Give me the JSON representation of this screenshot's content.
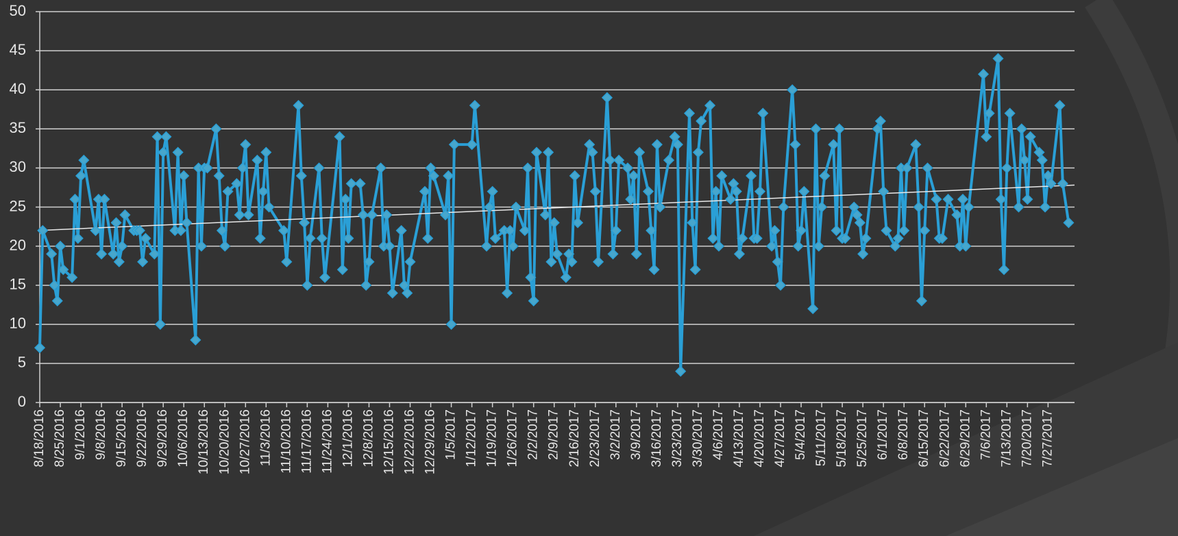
{
  "chart_data": {
    "type": "line",
    "x": [
      "8/18/2016",
      "8/19/2016",
      "8/22/2016",
      "8/23/2016",
      "8/24/2016",
      "8/25/2016",
      "8/26/2016",
      "8/29/2016",
      "8/30/2016",
      "8/31/2016",
      "9/1/2016",
      "9/2/2016",
      "9/6/2016",
      "9/7/2016",
      "9/8/2016",
      "9/9/2016",
      "9/12/2016",
      "9/13/2016",
      "9/14/2016",
      "9/15/2016",
      "9/16/2016",
      "9/19/2016",
      "9/20/2016",
      "9/21/2016",
      "9/22/2016",
      "9/23/2016",
      "9/26/2016",
      "9/27/2016",
      "9/28/2016",
      "9/29/2016",
      "9/30/2016",
      "10/3/2016",
      "10/4/2016",
      "10/5/2016",
      "10/6/2016",
      "10/7/2016",
      "10/10/2016",
      "10/11/2016",
      "10/12/2016",
      "10/13/2016",
      "10/14/2016",
      "10/17/2016",
      "10/18/2016",
      "10/19/2016",
      "10/20/2016",
      "10/21/2016",
      "10/24/2016",
      "10/25/2016",
      "10/26/2016",
      "10/27/2016",
      "10/28/2016",
      "10/31/2016",
      "11/1/2016",
      "11/2/2016",
      "11/3/2016",
      "11/4/2016",
      "11/9/2016",
      "11/10/2016",
      "11/14/2016",
      "11/15/2016",
      "11/16/2016",
      "11/17/2016",
      "11/18/2016",
      "11/21/2016",
      "11/22/2016",
      "11/23/2016",
      "11/28/2016",
      "11/29/2016",
      "11/30/2016",
      "12/1/2016",
      "12/2/2016",
      "12/5/2016",
      "12/6/2016",
      "12/7/2016",
      "12/8/2016",
      "12/9/2016",
      "12/12/2016",
      "12/13/2016",
      "12/14/2016",
      "12/15/2016",
      "12/16/2016",
      "12/19/2016",
      "12/20/2016",
      "12/21/2016",
      "12/22/2016",
      "12/27/2016",
      "12/28/2016",
      "12/29/2016",
      "12/30/2016",
      "1/3/2017",
      "1/4/2017",
      "1/5/2017",
      "1/6/2017",
      "1/12/2017",
      "1/13/2017",
      "1/17/2017",
      "1/18/2017",
      "1/19/2017",
      "1/20/2017",
      "1/23/2017",
      "1/24/2017",
      "1/25/2017",
      "1/26/2017",
      "1/27/2017",
      "1/30/2017",
      "1/31/2017",
      "2/1/2017",
      "2/2/2017",
      "2/3/2017",
      "2/6/2017",
      "2/7/2017",
      "2/8/2017",
      "2/9/2017",
      "2/10/2017",
      "2/13/2017",
      "2/14/2017",
      "2/15/2017",
      "2/16/2017",
      "2/17/2017",
      "2/21/2017",
      "2/22/2017",
      "2/23/2017",
      "2/24/2017",
      "2/27/2017",
      "2/28/2017",
      "3/1/2017",
      "3/2/2017",
      "3/3/2017",
      "3/6/2017",
      "3/7/2017",
      "3/8/2017",
      "3/9/2017",
      "3/10/2017",
      "3/13/2017",
      "3/14/2017",
      "3/15/2017",
      "3/16/2017",
      "3/17/2017",
      "3/20/2017",
      "3/22/2017",
      "3/23/2017",
      "3/24/2017",
      "3/27/2017",
      "3/28/2017",
      "3/29/2017",
      "3/30/2017",
      "3/31/2017",
      "4/3/2017",
      "4/4/2017",
      "4/5/2017",
      "4/6/2017",
      "4/7/2017",
      "4/10/2017",
      "4/11/2017",
      "4/12/2017",
      "4/13/2017",
      "4/14/2017",
      "4/17/2017",
      "4/18/2017",
      "4/19/2017",
      "4/20/2017",
      "4/21/2017",
      "4/24/2017",
      "4/25/2017",
      "4/26/2017",
      "4/27/2017",
      "4/28/2017",
      "5/1/2017",
      "5/2/2017",
      "5/3/2017",
      "5/4/2017",
      "5/5/2017",
      "5/8/2017",
      "5/9/2017",
      "5/10/2017",
      "5/11/2017",
      "5/12/2017",
      "5/15/2017",
      "5/16/2017",
      "5/17/2017",
      "5/18/2017",
      "5/19/2017",
      "5/22/2017",
      "5/23/2017",
      "5/24/2017",
      "5/25/2017",
      "5/26/2017",
      "5/30/2017",
      "5/31/2017",
      "6/1/2017",
      "6/2/2017",
      "6/5/2017",
      "6/6/2017",
      "6/7/2017",
      "6/8/2017",
      "6/9/2017",
      "6/12/2017",
      "6/13/2017",
      "6/14/2017",
      "6/15/2017",
      "6/16/2017",
      "6/19/2017",
      "6/20/2017",
      "6/21/2017",
      "6/23/2017",
      "6/26/2017",
      "6/27/2017",
      "6/28/2017",
      "6/29/2017",
      "6/30/2017",
      "7/5/2017",
      "7/6/2017",
      "7/7/2017",
      "7/10/2017",
      "7/11/2017",
      "7/12/2017",
      "7/13/2017",
      "7/14/2017",
      "7/17/2017",
      "7/18/2017",
      "7/19/2017",
      "7/20/2017",
      "7/21/2017",
      "7/24/2017",
      "7/25/2017",
      "7/26/2017",
      "7/27/2017",
      "7/28/2017",
      "7/31/2017",
      "8/1/2017",
      "8/3/2017"
    ],
    "series": [
      {
        "color": "#2a9fd6",
        "marker_color": "#47a6cc",
        "values": [
          7,
          22,
          19,
          15,
          13,
          20,
          17,
          16,
          26,
          21,
          29,
          31,
          22,
          26,
          19,
          26,
          19,
          23,
          18,
          20,
          24,
          22,
          22,
          22,
          18,
          21,
          19,
          34,
          10,
          32,
          34,
          22,
          32,
          22,
          29,
          23,
          8,
          30,
          20,
          30,
          30,
          35,
          29,
          22,
          20,
          27,
          28,
          24,
          30,
          33,
          24,
          31,
          21,
          27,
          32,
          25,
          22,
          18,
          38,
          29,
          23,
          15,
          21,
          30,
          21,
          16,
          34,
          17,
          26,
          21,
          28,
          28,
          24,
          15,
          18,
          24,
          30,
          20,
          24,
          20,
          14,
          22,
          15,
          14,
          18,
          27,
          21,
          30,
          29,
          24,
          29,
          10,
          33,
          33,
          38,
          20,
          25,
          27,
          21,
          22,
          14,
          22,
          20,
          25,
          22,
          30,
          16,
          13,
          32,
          24,
          32,
          18,
          23,
          19,
          16,
          19,
          18,
          29,
          23,
          33,
          32,
          27,
          18,
          39,
          31,
          19,
          22,
          31,
          30,
          26,
          29,
          19,
          32,
          27,
          22,
          17,
          33,
          25,
          31,
          34,
          33,
          4,
          37,
          23,
          17,
          32,
          36,
          38,
          21,
          27,
          20,
          29,
          26,
          28,
          27,
          19,
          21,
          29,
          21,
          21,
          27,
          37,
          20,
          22,
          18,
          15,
          25,
          40,
          33,
          20,
          22,
          27,
          12,
          35,
          20,
          25,
          29,
          33,
          22,
          35,
          21,
          21,
          25,
          24,
          23,
          19,
          21,
          35,
          36,
          27,
          22,
          20,
          21,
          30,
          22,
          30,
          33,
          25,
          13,
          22,
          30,
          26,
          21,
          21,
          26,
          24,
          20,
          26,
          20,
          25,
          42,
          34,
          37,
          44,
          26,
          17,
          30,
          37,
          25,
          35,
          31,
          26,
          34,
          32,
          31,
          25,
          29,
          28,
          38,
          28,
          23
        ]
      }
    ],
    "xlim": [
      "8/18/2016",
      "8/5/2017"
    ],
    "xticks": [
      "8/18/2016",
      "8/25/2016",
      "9/1/2016",
      "9/8/2016",
      "9/15/2016",
      "9/22/2016",
      "9/29/2016",
      "10/6/2016",
      "10/13/2016",
      "10/20/2016",
      "10/27/2016",
      "11/3/2016",
      "11/10/2016",
      "11/17/2016",
      "11/24/2016",
      "12/1/2016",
      "12/8/2016",
      "12/15/2016",
      "12/22/2016",
      "12/29/2016",
      "1/5/2017",
      "1/12/2017",
      "1/19/2017",
      "1/26/2017",
      "2/2/2017",
      "2/9/2017",
      "2/16/2017",
      "2/23/2017",
      "3/2/2017",
      "3/9/2017",
      "3/16/2017",
      "3/23/2017",
      "3/30/2017",
      "4/6/2017",
      "4/13/2017",
      "4/20/2017",
      "4/27/2017",
      "5/4/2017",
      "5/11/2017",
      "5/18/2017",
      "5/25/2017",
      "6/1/2017",
      "6/8/2017",
      "6/15/2017",
      "6/22/2017",
      "6/29/2017",
      "7/6/2017",
      "7/13/2017",
      "7/20/2017",
      "7/27/2017"
    ],
    "ylim": [
      0,
      50
    ],
    "yticks": [
      0,
      5,
      10,
      15,
      20,
      25,
      30,
      35,
      40,
      45,
      50
    ],
    "grid": true,
    "trendline": true
  }
}
